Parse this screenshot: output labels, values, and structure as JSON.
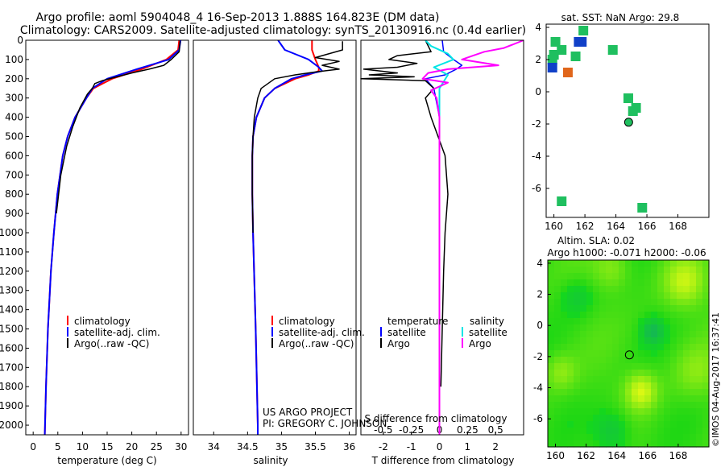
{
  "header": {
    "line1": "Argo profile: aoml 5904048_4 16-Sep-2013 1.888S 164.823E (DM data)",
    "line2": "Climatology: CARS2009. Satellite-adjusted climatology: synTS_20130916.nc (0.4d earlier)"
  },
  "colors": {
    "climatology": "#ff0000",
    "satellite": "#0000ff",
    "argo": "#000000",
    "sal_satellite": "#00e5e5",
    "sal_argo": "#ff00ff"
  },
  "depth_ticks": [
    0,
    100,
    200,
    300,
    400,
    500,
    600,
    700,
    800,
    900,
    1000,
    1100,
    1200,
    1300,
    1400,
    1500,
    1600,
    1700,
    1800,
    1900,
    2000
  ],
  "credits": {
    "project": "US ARGO PROJECT",
    "pi": "PI: GREGORY C. JOHNSON",
    "stamp": "©IMOS 04-Aug-2017 16:37:41"
  },
  "chart_data": [
    {
      "type": "line",
      "id": "temperature",
      "xlabel": "temperature (deg C)",
      "xlim": [
        -1.5,
        31.5
      ],
      "ylim": [
        2050,
        0
      ],
      "xticks": [
        0,
        5,
        10,
        15,
        20,
        25,
        30
      ],
      "legend": [
        "climatology",
        "satellite-adj. clim.",
        "Argo(..raw -QC)"
      ],
      "legend_position": "bottom-right",
      "series": [
        {
          "name": "climatology",
          "depth": [
            0,
            50,
            100,
            150,
            200,
            250,
            300,
            400,
            500,
            600,
            800,
            1000,
            1200,
            1500,
            1800,
            2000,
            2050
          ],
          "values": [
            29.6,
            29.4,
            27,
            22,
            16,
            12.2,
            10.8,
            8.5,
            7,
            6,
            4.9,
            4.2,
            3.6,
            3,
            2.6,
            2.4,
            2.35
          ]
        },
        {
          "name": "satellite-adj. clim.",
          "depth": [
            0,
            50,
            100,
            150,
            200,
            250,
            300,
            400,
            500,
            600,
            800,
            1000,
            1200,
            1500,
            1800,
            2000,
            2050
          ],
          "values": [
            29.9,
            29.6,
            27.5,
            21,
            15,
            12,
            10.8,
            8.5,
            7,
            6,
            4.9,
            4.2,
            3.6,
            3,
            2.6,
            2.4,
            2.35
          ]
        },
        {
          "name": "Argo(..raw -QC)",
          "depth": [
            5,
            60,
            100,
            130,
            150,
            170,
            190,
            210,
            225,
            250,
            280,
            350,
            450,
            550,
            700,
            900
          ],
          "values": [
            29.8,
            29.6,
            28,
            26.5,
            23.5,
            20,
            17,
            14,
            12.5,
            12,
            11,
            9.5,
            8,
            6.8,
            5.6,
            4.7
          ]
        }
      ]
    },
    {
      "type": "line",
      "id": "salinity",
      "xlabel": "salinity",
      "xlim": [
        33.7,
        36.1
      ],
      "ylim": [
        2050,
        0
      ],
      "xticks": [
        34,
        34.5,
        35,
        35.5,
        36
      ],
      "xtick_labels": [
        "34",
        "34.5",
        "35",
        "35.5",
        "36"
      ],
      "legend": [
        "climatology",
        "satellite-adj. clim.",
        "Argo(..raw -QC)"
      ],
      "legend_position": "bottom-right",
      "series": [
        {
          "name": "climatology",
          "depth": [
            0,
            50,
            100,
            140,
            160,
            180,
            200,
            250,
            300,
            400,
            500,
            600,
            800,
            1000,
            1500,
            2000,
            2050
          ],
          "values": [
            35.45,
            35.45,
            35.5,
            35.55,
            35.55,
            35.4,
            35.2,
            34.9,
            34.75,
            34.63,
            34.58,
            34.57,
            34.57,
            34.58,
            34.62,
            34.65,
            34.65
          ]
        },
        {
          "name": "satellite-adj. clim.",
          "depth": [
            0,
            50,
            100,
            140,
            160,
            180,
            200,
            250,
            300,
            400,
            500,
            600,
            800,
            1000,
            1500,
            2000,
            2050
          ],
          "values": [
            34.95,
            35.05,
            35.4,
            35.55,
            35.6,
            35.35,
            35.15,
            34.9,
            34.75,
            34.63,
            34.58,
            34.57,
            34.57,
            34.58,
            34.62,
            34.65,
            34.65
          ]
        },
        {
          "name": "Argo(..raw -QC)",
          "depth": [
            5,
            50,
            90,
            110,
            130,
            150,
            165,
            180,
            200,
            225,
            250,
            300,
            400,
            500,
            600,
            800,
            1000
          ],
          "values": [
            35.9,
            35.9,
            35.5,
            35.85,
            35.6,
            35.85,
            35.5,
            35.2,
            34.9,
            34.8,
            34.7,
            34.65,
            34.6,
            34.58,
            34.57,
            34.57,
            34.58
          ]
        }
      ]
    },
    {
      "type": "line",
      "id": "difference",
      "xlabel": "T difference from climatology",
      "xlabel2": "S difference from climatology",
      "xlim": [
        -2.8,
        3
      ],
      "ylim": [
        2050,
        0
      ],
      "xticks": [
        -2,
        -1,
        0,
        1,
        2
      ],
      "xtick_labels": [
        "-2",
        "-1",
        "0",
        "1",
        "2"
      ],
      "xticks2": [
        -2,
        -1,
        0,
        1,
        2
      ],
      "xtick_labels2": [
        "-0.5",
        "-0.25",
        "0",
        "0.25",
        "0.5"
      ],
      "legend_titles": [
        "temperature",
        "salinity"
      ],
      "legend_temperature": [
        "satellite",
        "Argo"
      ],
      "legend_salinity": [
        "satellite",
        "Argo"
      ],
      "legend_position": "bottom",
      "series": [
        {
          "name": "T satellite",
          "depth": [
            0,
            60,
            100,
            130,
            150,
            180,
            200,
            250,
            400,
            2050
          ],
          "values": [
            0.1,
            0.15,
            0.5,
            0.8,
            0.6,
            0.2,
            -0.5,
            -0.2,
            0,
            0
          ]
        },
        {
          "name": "T Argo",
          "depth": [
            0,
            60,
            80,
            100,
            120,
            140,
            150,
            170,
            180,
            190,
            200,
            210,
            250,
            300,
            400,
            600,
            800,
            1000,
            1200,
            1500,
            1800
          ],
          "values": [
            -0.5,
            -0.3,
            -1.5,
            -1.8,
            -0.8,
            -1.5,
            -2.7,
            -1.5,
            -2.5,
            -0.9,
            -2.8,
            -0.5,
            -0.2,
            -0.5,
            -0.3,
            0.2,
            0.3,
            0.2,
            0.15,
            0.1,
            0.05
          ]
        },
        {
          "name": "S satellite",
          "depth": [
            0,
            30,
            70,
            100,
            140,
            180,
            250,
            400,
            2050
          ],
          "values": [
            -0.5,
            -0.3,
            0.3,
            0.5,
            -0.2,
            0.3,
            0,
            0,
            0
          ]
        },
        {
          "name": "S Argo",
          "depth": [
            0,
            40,
            60,
            80,
            100,
            130,
            150,
            170,
            200,
            220,
            260,
            300,
            400,
            2050
          ],
          "values": [
            3,
            2.3,
            1.6,
            1.2,
            0.8,
            2.1,
            0.3,
            -0.4,
            -0.6,
            0.3,
            -0.3,
            -0.1,
            0,
            0
          ]
        }
      ]
    },
    {
      "type": "scatter",
      "id": "sst-map",
      "title": "sat. SST: NaN  Argo: 29.8",
      "xlim": [
        159.5,
        170
      ],
      "ylim": [
        -7.8,
        4.2
      ],
      "xticks": [
        160,
        162,
        164,
        166,
        168
      ],
      "yticks": [
        4,
        2,
        0,
        -2,
        -4,
        -6
      ],
      "points": [
        {
          "x": 160.1,
          "y": 3.1,
          "color": "#1fbf5f"
        },
        {
          "x": 160.5,
          "y": 2.6,
          "color": "#1fbf5f"
        },
        {
          "x": 160,
          "y": 2.3,
          "color": "#1fbf5f"
        },
        {
          "x": 159.9,
          "y": 2.0,
          "color": "#1fbf5f"
        },
        {
          "x": 159.9,
          "y": 1.5,
          "color": "#1040c8"
        },
        {
          "x": 161.9,
          "y": 3.8,
          "color": "#1fbf5f"
        },
        {
          "x": 161.8,
          "y": 3.1,
          "color": "#1040c8"
        },
        {
          "x": 161.6,
          "y": 3.1,
          "color": "#1040c8"
        },
        {
          "x": 161.4,
          "y": 2.2,
          "color": "#1fbf5f"
        },
        {
          "x": 160.9,
          "y": 1.2,
          "color": "#e0661b"
        },
        {
          "x": 163.8,
          "y": 2.6,
          "color": "#1fbf5f"
        },
        {
          "x": 164.8,
          "y": -0.4,
          "color": "#1fbf5f"
        },
        {
          "x": 165.3,
          "y": -1.0,
          "color": "#1fbf5f"
        },
        {
          "x": 165.1,
          "y": -1.2,
          "color": "#1fbf5f"
        },
        {
          "x": 160.5,
          "y": -6.8,
          "color": "#1fbf5f"
        },
        {
          "x": 165.7,
          "y": -7.2,
          "color": "#1fbf5f"
        }
      ],
      "argo_position": {
        "x": 164.82,
        "y": -1.89
      }
    },
    {
      "type": "heatmap",
      "id": "sla-map",
      "title": "Altim. SLA: 0.02",
      "subtitle": "Argo h1000: -0.071  h2000: -0.06",
      "xlim": [
        159.5,
        170
      ],
      "ylim": [
        -7.8,
        4.2
      ],
      "xticks": [
        160,
        162,
        164,
        166,
        168
      ],
      "yticks": [
        4,
        2,
        0,
        -2,
        -4,
        -6
      ],
      "argo_position": {
        "x": 164.82,
        "y": -1.89
      }
    }
  ]
}
